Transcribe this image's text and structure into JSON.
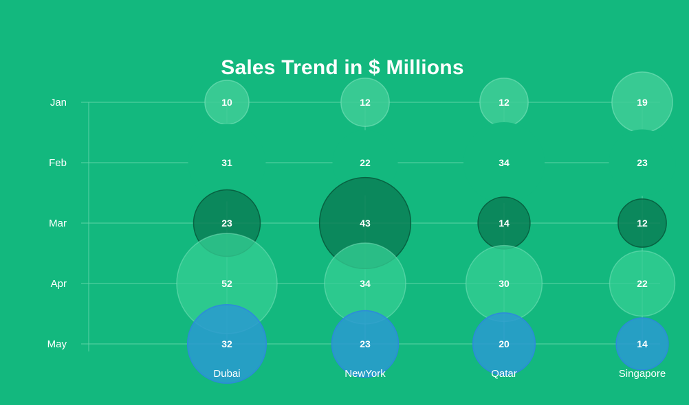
{
  "chart_data": {
    "type": "bubble",
    "title": "Sales Trend in $ Millions",
    "x_categories": [
      "Dubai",
      "NewYork",
      "Qatar",
      "Singapore"
    ],
    "y_categories": [
      "Jan",
      "Feb",
      "Mar",
      "Apr",
      "May"
    ],
    "series": [
      {
        "row": "Jan",
        "values": [
          10,
          12,
          12,
          19
        ]
      },
      {
        "row": "Feb",
        "values": [
          31,
          22,
          34,
          23
        ]
      },
      {
        "row": "Mar",
        "values": [
          23,
          43,
          14,
          12
        ]
      },
      {
        "row": "Apr",
        "values": [
          52,
          34,
          30,
          22
        ]
      },
      {
        "row": "May",
        "values": [
          32,
          23,
          20,
          14
        ]
      }
    ],
    "grid": true,
    "legend": "none",
    "colors": {
      "background": "#13b87e",
      "grid": "#5fd4a8",
      "text": "#ffffff",
      "Jan": "#3fcc96",
      "Feb": "#13b87e",
      "Mar": "#0b7f56",
      "Apr": "#36cf94",
      "May": "#2a9ad0",
      "May_stroke": "#2d86e0"
    }
  }
}
